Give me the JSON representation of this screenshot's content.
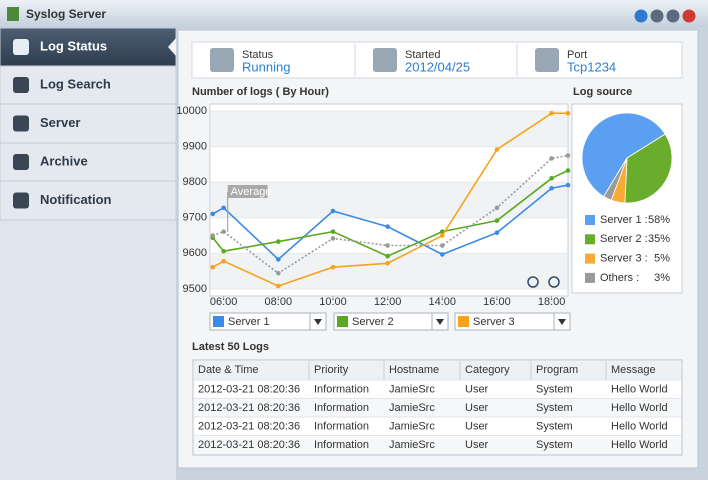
{
  "window": {
    "title": "Syslog Server"
  },
  "sidebar": {
    "items": [
      "Log Status",
      "Log Search",
      "Server",
      "Archive",
      "Notification"
    ]
  },
  "status": [
    {
      "label": "Status",
      "value": "Running"
    },
    {
      "label": "Started",
      "value": "2012/04/25"
    },
    {
      "label": "Port",
      "value": "Tcp1234"
    }
  ],
  "chart_data": [
    {
      "type": "line",
      "title": "Number of logs ( By Hour)",
      "x": [
        5.6,
        6,
        8,
        10,
        12,
        14,
        16,
        18,
        18.6
      ],
      "xlim": [
        5.5,
        18.6
      ],
      "xticks": [
        {
          "value": 6,
          "label": "06:00"
        },
        {
          "value": 8,
          "label": "08:00"
        },
        {
          "value": 10,
          "label": "10:00"
        },
        {
          "value": 12,
          "label": "12:00"
        },
        {
          "value": 14,
          "label": "14:00"
        },
        {
          "value": 16,
          "label": "16:00"
        },
        {
          "value": 18,
          "label": "18:00"
        }
      ],
      "ylim": [
        9480,
        10020
      ],
      "yticks": [
        9500,
        9600,
        9700,
        9800,
        9900,
        10000
      ],
      "grid": true,
      "series": [
        {
          "name": "Server 1",
          "color": "#3b8ae6",
          "values": [
            9711,
            9728,
            9583,
            9719,
            9675,
            9597,
            9658,
            9783,
            9792
          ]
        },
        {
          "name": "Server 2",
          "color": "#5aa820",
          "values": [
            9644,
            9606,
            9633,
            9661,
            9592,
            9661,
            9692,
            9811,
            9833
          ]
        },
        {
          "name": "Server 3",
          "color": "#f7a21b",
          "values": [
            9561,
            9578,
            9508,
            9561,
            9572,
            9650,
            9892,
            9994,
            9994
          ]
        },
        {
          "name": "Average",
          "color": "#9a9a9a",
          "line_style": "dotted",
          "values": [
            9650,
            9661,
            9544,
            9642,
            9622,
            9622,
            9728,
            9867,
            9875
          ]
        }
      ]
    },
    {
      "type": "pie",
      "title": "Log source",
      "categories": [
        "Server 1 :",
        "Server 2 :",
        "Server 3 :",
        "Others :"
      ],
      "values": [
        58,
        35,
        5,
        3
      ],
      "value_labels": [
        "58%",
        "35%",
        "5%",
        "3%"
      ],
      "colors": [
        "#5a9ff0",
        "#6aad2c",
        "#f7ab35",
        "#9a9a9a"
      ]
    }
  ],
  "table": {
    "title": "Latest 50 Logs",
    "columns": [
      "Date & Time",
      "Priority",
      "Hostname",
      "Category",
      "Program",
      "Message"
    ],
    "rows": [
      [
        "2012-03-21 08:20:36",
        "Information",
        "JamieSrc",
        "User",
        "System",
        "Hello World"
      ],
      [
        "2012-03-21 08:20:36",
        "Information",
        "JamieSrc",
        "User",
        "System",
        "Hello World"
      ],
      [
        "2012-03-21 08:20:36",
        "Information",
        "JamieSrc",
        "User",
        "System",
        "Hello World"
      ],
      [
        "2012-03-21 08:20:36",
        "Information",
        "JamieSrc",
        "User",
        "System",
        "Hello World"
      ]
    ]
  }
}
